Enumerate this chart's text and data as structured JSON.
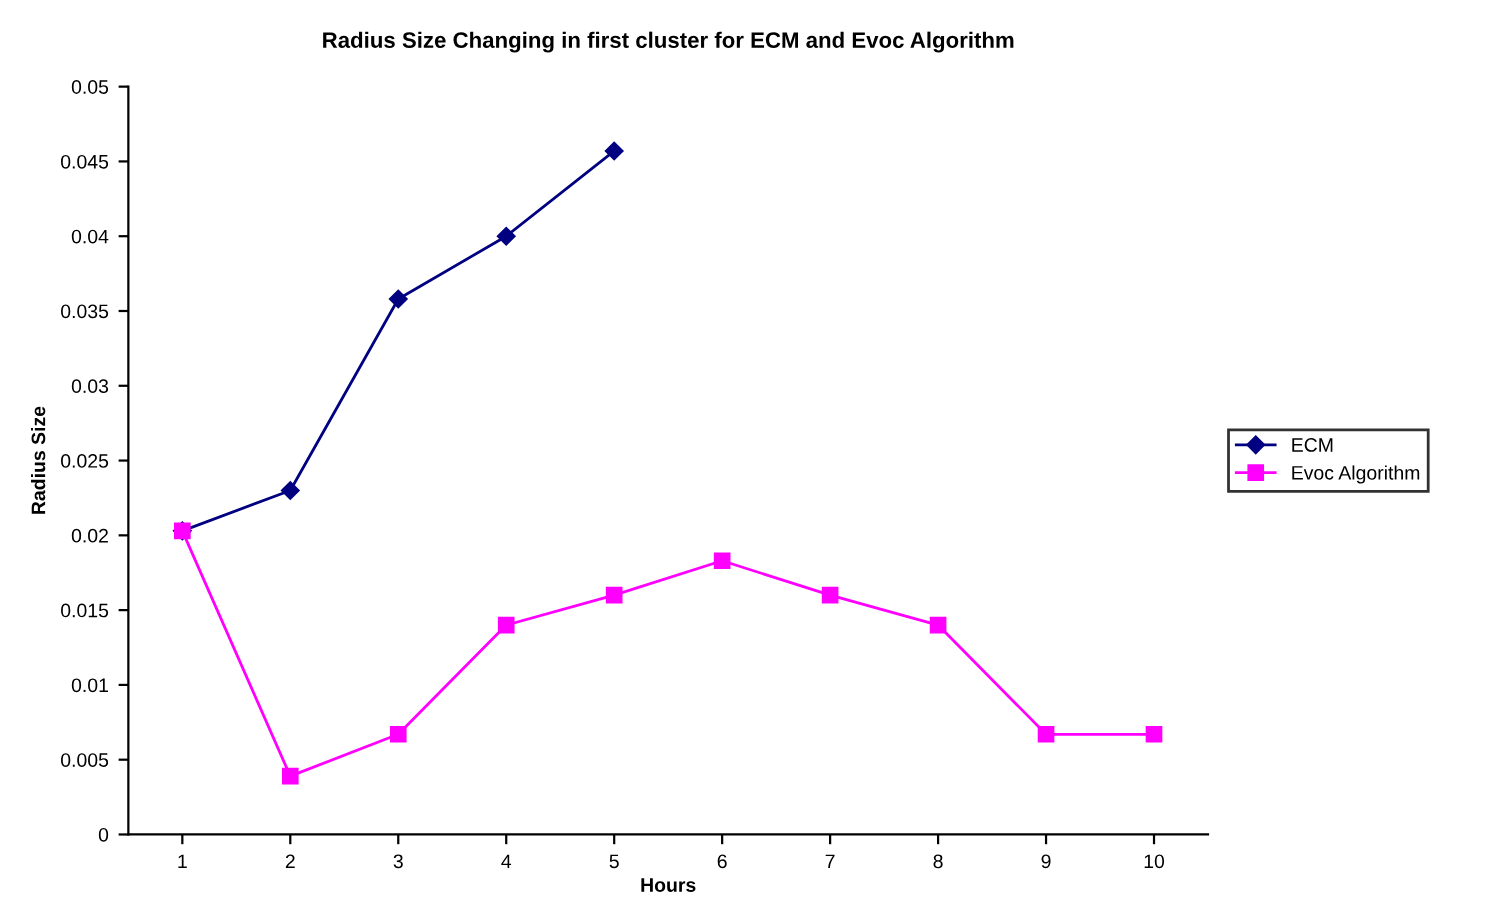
{
  "chart_data": {
    "type": "line",
    "title": "Radius Size Changing in first cluster for ECM and Evoc Algorithm",
    "xlabel": "Hours",
    "ylabel": "Radius Size",
    "categories": [
      "1",
      "2",
      "3",
      "4",
      "5",
      "6",
      "7",
      "8",
      "9",
      "10"
    ],
    "series": [
      {
        "name": "ECM",
        "color": "#000080",
        "marker": "diamond",
        "values": [
          0.0203,
          0.023,
          0.0358,
          0.04,
          0.0457,
          null,
          null,
          null,
          null,
          null
        ]
      },
      {
        "name": "Evoc Algorithm",
        "color": "#ff00ff",
        "marker": "square",
        "values": [
          0.0203,
          0.0039,
          0.0067,
          0.014,
          0.016,
          0.0183,
          0.016,
          0.014,
          0.0067,
          0.0067
        ]
      }
    ],
    "ylim": [
      0,
      0.05
    ],
    "yticks": [
      0,
      0.005,
      0.01,
      0.015,
      0.02,
      0.025,
      0.03,
      0.035,
      0.04,
      0.045,
      0.05
    ],
    "grid": false,
    "legend": "right",
    "line_style": "solid"
  }
}
